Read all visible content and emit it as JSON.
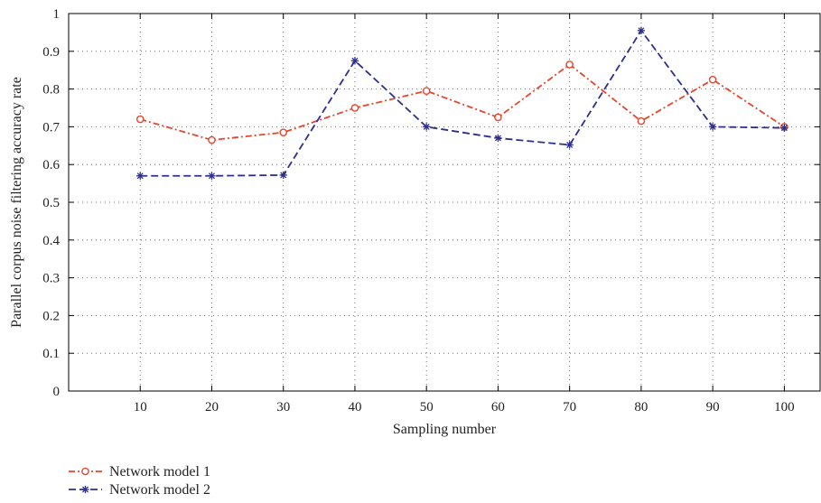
{
  "chart_data": {
    "type": "line",
    "title": "",
    "xlabel": "Sampling number",
    "ylabel": "Parallel corpus noise filtering accuracy rate",
    "x": [
      10,
      20,
      30,
      40,
      50,
      60,
      70,
      80,
      90,
      100
    ],
    "x_tick_labels": [
      "10",
      "20",
      "30",
      "40",
      "50",
      "60",
      "70",
      "80",
      "90",
      "100"
    ],
    "xlim": [
      0,
      105
    ],
    "ylim": [
      0,
      1
    ],
    "y_ticks": [
      0,
      0.1,
      0.2,
      0.3,
      0.4,
      0.5,
      0.6,
      0.7,
      0.8,
      0.9,
      1
    ],
    "y_tick_labels": [
      "0",
      "0.1",
      "0.2",
      "0.3",
      "0.4",
      "0.5",
      "0.6",
      "0.7",
      "0.8",
      "0.9",
      "1"
    ],
    "grid": true,
    "legend_position": "bottom-left",
    "series": [
      {
        "name": "Network model 1",
        "values": [
          0.72,
          0.665,
          0.685,
          0.75,
          0.795,
          0.725,
          0.865,
          0.715,
          0.825,
          0.7
        ],
        "color": "#e8452c",
        "marker": "circle",
        "line_style": "dash-dot"
      },
      {
        "name": "Network model 2",
        "values": [
          0.57,
          0.57,
          0.572,
          0.875,
          0.7,
          0.67,
          0.652,
          0.955,
          0.7,
          0.697
        ],
        "color": "#2e2e8f",
        "marker": "asterisk",
        "line_style": "dashed"
      }
    ]
  }
}
